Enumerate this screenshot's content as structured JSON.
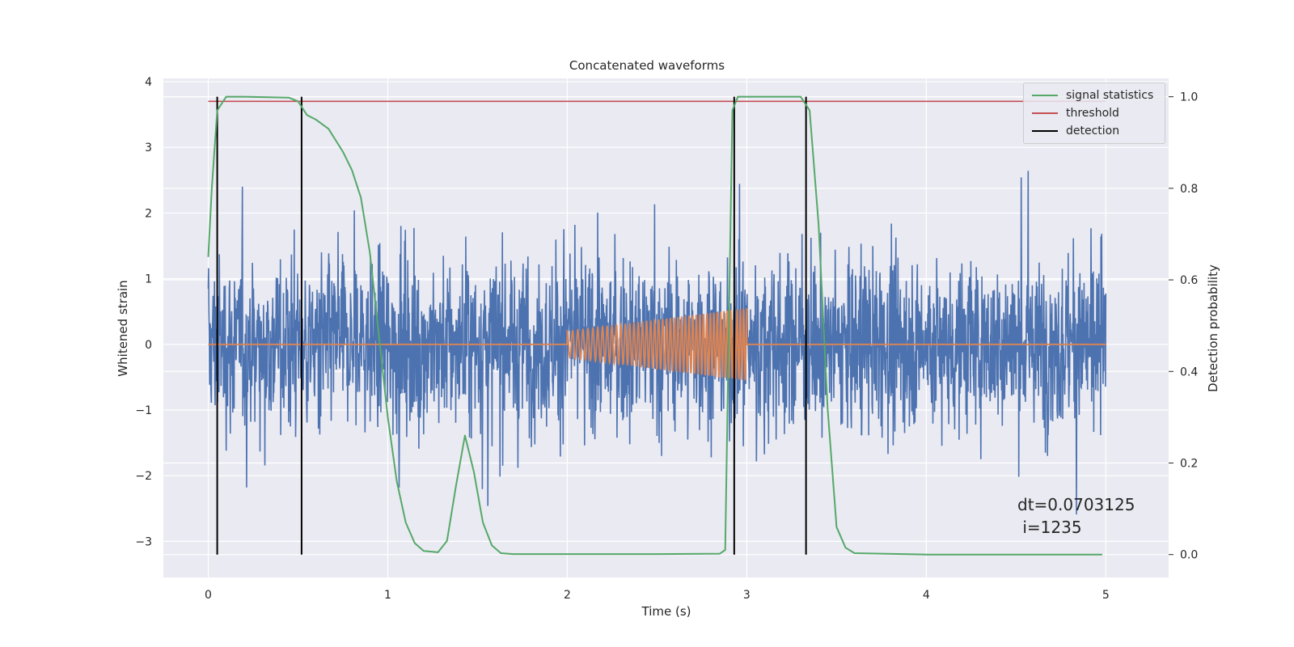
{
  "chart_data": {
    "type": "line",
    "title": "Concatenated waveforms",
    "xlabel": "Time (s)",
    "ylabel": "Whitened strain",
    "y2label": "Detection probability",
    "xlim": [
      -0.25,
      5.35
    ],
    "ylim": [
      -3.55,
      4.05
    ],
    "y2lim": [
      -0.05,
      1.04
    ],
    "xticks": [
      0,
      1,
      2,
      3,
      4,
      5
    ],
    "yticks": [
      -3,
      -2,
      -1,
      0,
      1,
      2,
      3,
      4
    ],
    "y2ticks": [
      0.0,
      0.2,
      0.4,
      0.6,
      0.8,
      1.0
    ],
    "xtick_labels": [
      "0",
      "1",
      "2",
      "3",
      "4",
      "5"
    ],
    "ytick_labels": [
      "−3",
      "−2",
      "−1",
      "0",
      "1",
      "2",
      "3",
      "4"
    ],
    "y2tick_labels": [
      "0.0",
      "0.2",
      "0.4",
      "0.6",
      "0.8",
      "1.0"
    ],
    "grid": true,
    "legend_position": "top-right",
    "colors": {
      "background": "#eaeaf2",
      "strain": "#4c72b0",
      "injection": "#dd8452",
      "signal_statistics": "#55a868",
      "threshold": "#c44e52",
      "detection": "#000000"
    },
    "series": [
      {
        "id": "strain",
        "axis": "left",
        "description_note": "noisy whitened strain spanning 0-5 s, amplitude mostly within about -2.5 to 2.5 with peaks near 3.6 and troughs near -3.3",
        "x_range": [
          0,
          5
        ],
        "envelope": [
          -3.3,
          3.6
        ]
      },
      {
        "id": "injection",
        "axis": "left",
        "x_range": [
          0,
          5
        ],
        "chirp": {
          "start": 2.0,
          "end": 3.0,
          "amp_start": 0.2,
          "amp_end": 0.55,
          "cycles": 45
        }
      },
      {
        "name": "signal statistics",
        "axis": "right",
        "x": [
          0,
          0.02,
          0.05,
          0.1,
          0.2,
          0.45,
          0.5,
          0.55,
          0.6,
          0.67,
          0.75,
          0.8,
          0.85,
          0.9,
          0.95,
          1.0,
          1.05,
          1.1,
          1.15,
          1.2,
          1.28,
          1.33,
          1.38,
          1.43,
          1.48,
          1.53,
          1.58,
          1.63,
          1.7,
          2.0,
          2.5,
          2.85,
          2.88,
          2.92,
          2.95,
          3.3,
          3.35,
          3.4,
          3.45,
          3.5,
          3.55,
          3.6,
          4.0,
          4.98
        ],
        "y": [
          0.65,
          0.8,
          0.97,
          1.0,
          1.0,
          0.998,
          0.99,
          0.96,
          0.95,
          0.93,
          0.88,
          0.84,
          0.78,
          0.66,
          0.48,
          0.3,
          0.16,
          0.07,
          0.025,
          0.008,
          0.005,
          0.03,
          0.15,
          0.26,
          0.18,
          0.07,
          0.02,
          0.003,
          0.001,
          0.001,
          0.001,
          0.002,
          0.01,
          0.97,
          1.0,
          1.0,
          0.97,
          0.72,
          0.32,
          0.06,
          0.015,
          0.003,
          0.0,
          0.0
        ]
      },
      {
        "name": "threshold",
        "axis": "right",
        "x": [
          0,
          5
        ],
        "y": [
          0.99,
          0.99
        ]
      },
      {
        "name": "detection",
        "axis": "right",
        "type": "vlines",
        "x": [
          0.05,
          0.52,
          2.93,
          3.33
        ],
        "ymin": 0.0,
        "ymax": 1.0
      }
    ],
    "legend": [
      "signal statistics",
      "threshold",
      "detection"
    ]
  },
  "annotation": "dt=0.0703125\n i=1235"
}
